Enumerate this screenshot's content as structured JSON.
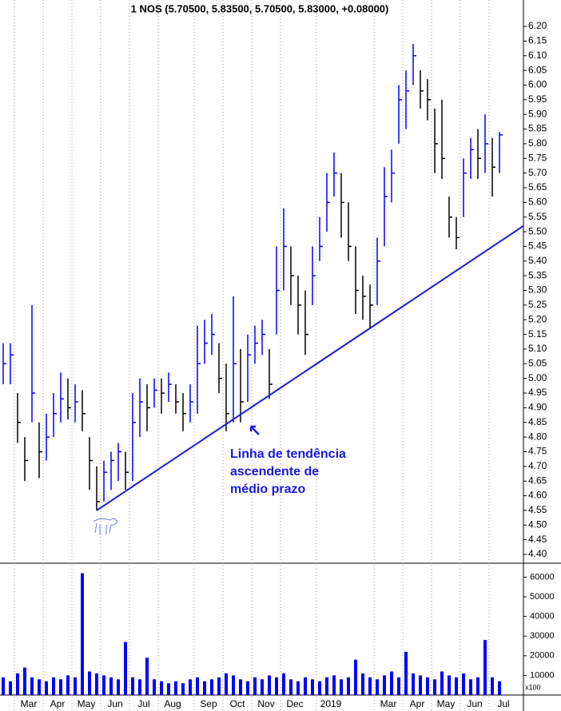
{
  "chart_data": [
    {
      "type": "ohlc",
      "title": "1 NOS (5.70500, 5.83500, 5.70500, 5.83000, +0.08000)",
      "categories": [
        null,
        null,
        "Mar",
        null,
        null,
        null,
        "Apr",
        null,
        null,
        null,
        "May",
        null,
        null,
        null,
        "Jun",
        null,
        null,
        null,
        "Jul",
        null,
        null,
        null,
        "Aug",
        null,
        null,
        null,
        null,
        "Sep",
        null,
        null,
        null,
        "Oct",
        null,
        null,
        null,
        "Nov",
        null,
        null,
        null,
        "Dec",
        null,
        null,
        null,
        null,
        "2019",
        null,
        null,
        null,
        null,
        null,
        null,
        null,
        "Mar",
        null,
        null,
        null,
        "Apr",
        null,
        null,
        null,
        "May",
        null,
        null,
        null,
        "Jun",
        null,
        null,
        null,
        "Jul",
        null
      ],
      "high": [
        5.12,
        5.12,
        4.95,
        4.8,
        5.25,
        4.85,
        4.88,
        4.95,
        5.02,
        5.0,
        4.98,
        4.96,
        4.8,
        4.7,
        4.72,
        4.75,
        4.78,
        4.75,
        4.95,
        5.0,
        4.98,
        5.0,
        5.0,
        5.02,
        4.98,
        4.95,
        4.98,
        5.18,
        5.2,
        5.22,
        5.12,
        5.05,
        5.28,
        5.1,
        5.15,
        5.18,
        5.2,
        5.1,
        5.45,
        5.58,
        5.45,
        5.35,
        5.3,
        5.45,
        5.55,
        5.7,
        5.77,
        5.7,
        5.6,
        5.45,
        5.35,
        5.32,
        5.48,
        5.72,
        5.78,
        6.0,
        6.05,
        6.14,
        6.05,
        6.02,
        5.92,
        5.95,
        5.62,
        5.55,
        5.75,
        5.82,
        5.85,
        5.9,
        5.82,
        5.84
      ],
      "low": [
        4.98,
        4.98,
        4.78,
        4.65,
        4.85,
        4.66,
        4.72,
        4.8,
        4.85,
        4.86,
        4.85,
        4.82,
        4.62,
        4.55,
        4.58,
        4.62,
        4.65,
        4.62,
        4.65,
        4.8,
        4.82,
        4.9,
        4.88,
        4.92,
        4.88,
        4.82,
        4.85,
        4.88,
        5.05,
        5.08,
        4.95,
        4.82,
        4.85,
        4.85,
        4.92,
        5.05,
        5.08,
        4.93,
        5.15,
        5.3,
        5.25,
        5.15,
        5.08,
        5.25,
        5.4,
        5.5,
        5.62,
        5.48,
        5.4,
        5.22,
        5.2,
        5.17,
        5.25,
        5.45,
        5.6,
        5.8,
        5.85,
        6.0,
        5.92,
        5.88,
        5.7,
        5.68,
        5.48,
        5.44,
        5.55,
        5.68,
        5.68,
        5.7,
        5.62,
        5.7
      ],
      "values": [
        5.05,
        5.08,
        4.85,
        4.72,
        4.95,
        4.75,
        4.8,
        4.88,
        4.93,
        4.9,
        4.92,
        4.88,
        4.72,
        4.58,
        4.68,
        4.72,
        4.75,
        4.68,
        4.85,
        4.92,
        4.9,
        4.96,
        4.95,
        4.98,
        4.92,
        4.88,
        4.92,
        5.05,
        5.12,
        5.15,
        5.0,
        4.88,
        5.05,
        4.92,
        5.08,
        5.12,
        5.15,
        4.98,
        5.3,
        5.45,
        5.35,
        5.25,
        5.15,
        5.35,
        5.45,
        5.6,
        5.7,
        5.6,
        5.45,
        5.3,
        5.28,
        5.25,
        5.4,
        5.62,
        5.7,
        5.95,
        5.98,
        6.1,
        5.98,
        5.95,
        5.8,
        5.75,
        5.55,
        5.48,
        5.7,
        5.78,
        5.75,
        5.8,
        5.72,
        5.83
      ],
      "up_color": "#0000ff",
      "down_color": "#000000",
      "trendline": {
        "values": [
          4.55,
          5.52
        ],
        "color": "#1a1adc"
      },
      "annotation": [
        "Linha de tendência",
        "ascendente de",
        "médio prazo"
      ],
      "ylim": [
        4.37,
        6.29
      ],
      "yticks": [
        {
          "value": 4.4,
          "label": "4.40"
        },
        {
          "value": 4.45,
          "label": "4.45"
        },
        {
          "value": 4.5,
          "label": "4.50"
        },
        {
          "value": 4.55,
          "label": "4.55"
        },
        {
          "value": 4.6,
          "label": "4.60"
        },
        {
          "value": 4.65,
          "label": "4.65"
        },
        {
          "value": 4.7,
          "label": "4.70"
        },
        {
          "value": 4.75,
          "label": "4.75"
        },
        {
          "value": 4.8,
          "label": "4.80"
        },
        {
          "value": 4.85,
          "label": "4.85"
        },
        {
          "value": 4.9,
          "label": "4.90"
        },
        {
          "value": 4.95,
          "label": "4.95"
        },
        {
          "value": 5.0,
          "label": "5.00"
        },
        {
          "value": 5.05,
          "label": "5.05"
        },
        {
          "value": 5.1,
          "label": "5.10"
        },
        {
          "value": 5.15,
          "label": "5.15"
        },
        {
          "value": 5.2,
          "label": "5.20"
        },
        {
          "value": 5.25,
          "label": "5.25"
        },
        {
          "value": 5.3,
          "label": "5.30"
        },
        {
          "value": 5.35,
          "label": "5.35"
        },
        {
          "value": 5.4,
          "label": "5.40"
        },
        {
          "value": 5.45,
          "label": "5.45"
        },
        {
          "value": 5.5,
          "label": "5.50"
        },
        {
          "value": 5.55,
          "label": "5.55"
        },
        {
          "value": 5.6,
          "label": "5.60"
        },
        {
          "value": 5.65,
          "label": "5.65"
        },
        {
          "value": 5.7,
          "label": "5.70"
        },
        {
          "value": 5.75,
          "label": "5.75"
        },
        {
          "value": 5.8,
          "label": "5.80"
        },
        {
          "value": 5.85,
          "label": "5.85"
        },
        {
          "value": 5.9,
          "label": "5.90"
        },
        {
          "value": 5.95,
          "label": "5.95"
        },
        {
          "value": 6.0,
          "label": "6.00"
        },
        {
          "value": 6.05,
          "label": "6.05"
        },
        {
          "value": 6.1,
          "label": "6.10"
        },
        {
          "value": 6.15,
          "label": "6.15"
        },
        {
          "value": 6.2,
          "label": "6.20"
        }
      ]
    },
    {
      "type": "bar",
      "unit_label": "x100",
      "values": [
        9000,
        7000,
        11000,
        14000,
        9000,
        8000,
        7000,
        9000,
        8000,
        10000,
        9000,
        62000,
        12000,
        11000,
        10000,
        9000,
        8000,
        27000,
        9000,
        8000,
        19000,
        8000,
        7000,
        6000,
        7000,
        6000,
        8000,
        9000,
        7000,
        8000,
        9000,
        11000,
        10000,
        8000,
        7000,
        9000,
        8000,
        10000,
        9000,
        11000,
        8000,
        7000,
        9000,
        8000,
        7000,
        9000,
        10000,
        8000,
        9000,
        18000,
        11000,
        9000,
        8000,
        10000,
        12000,
        9000,
        22000,
        11000,
        10000,
        9000,
        8000,
        12000,
        10000,
        9000,
        11000,
        8000,
        9000,
        28000,
        9000,
        7000
      ],
      "color": "#0000ff",
      "ylim": [
        0,
        66700
      ],
      "yticks": [
        10000,
        20000,
        30000,
        40000,
        50000,
        60000
      ]
    }
  ]
}
